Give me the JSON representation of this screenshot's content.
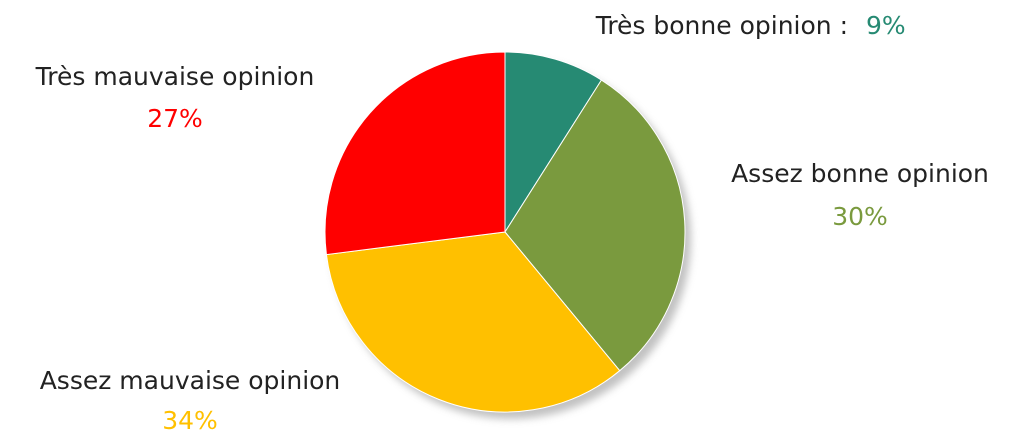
{
  "chart_data": {
    "type": "pie",
    "categories": [
      "Très bonne opinion :",
      "Assez bonne opinion",
      "Assez mauvaise opinion",
      "Très mauvaise opinion"
    ],
    "values": [
      9,
      30,
      34,
      27
    ],
    "value_labels": [
      "9%",
      "30%",
      "34%",
      "27%"
    ],
    "colors": [
      "#268a73",
      "#7a9a3e",
      "#ffc000",
      "#ff0000"
    ]
  }
}
